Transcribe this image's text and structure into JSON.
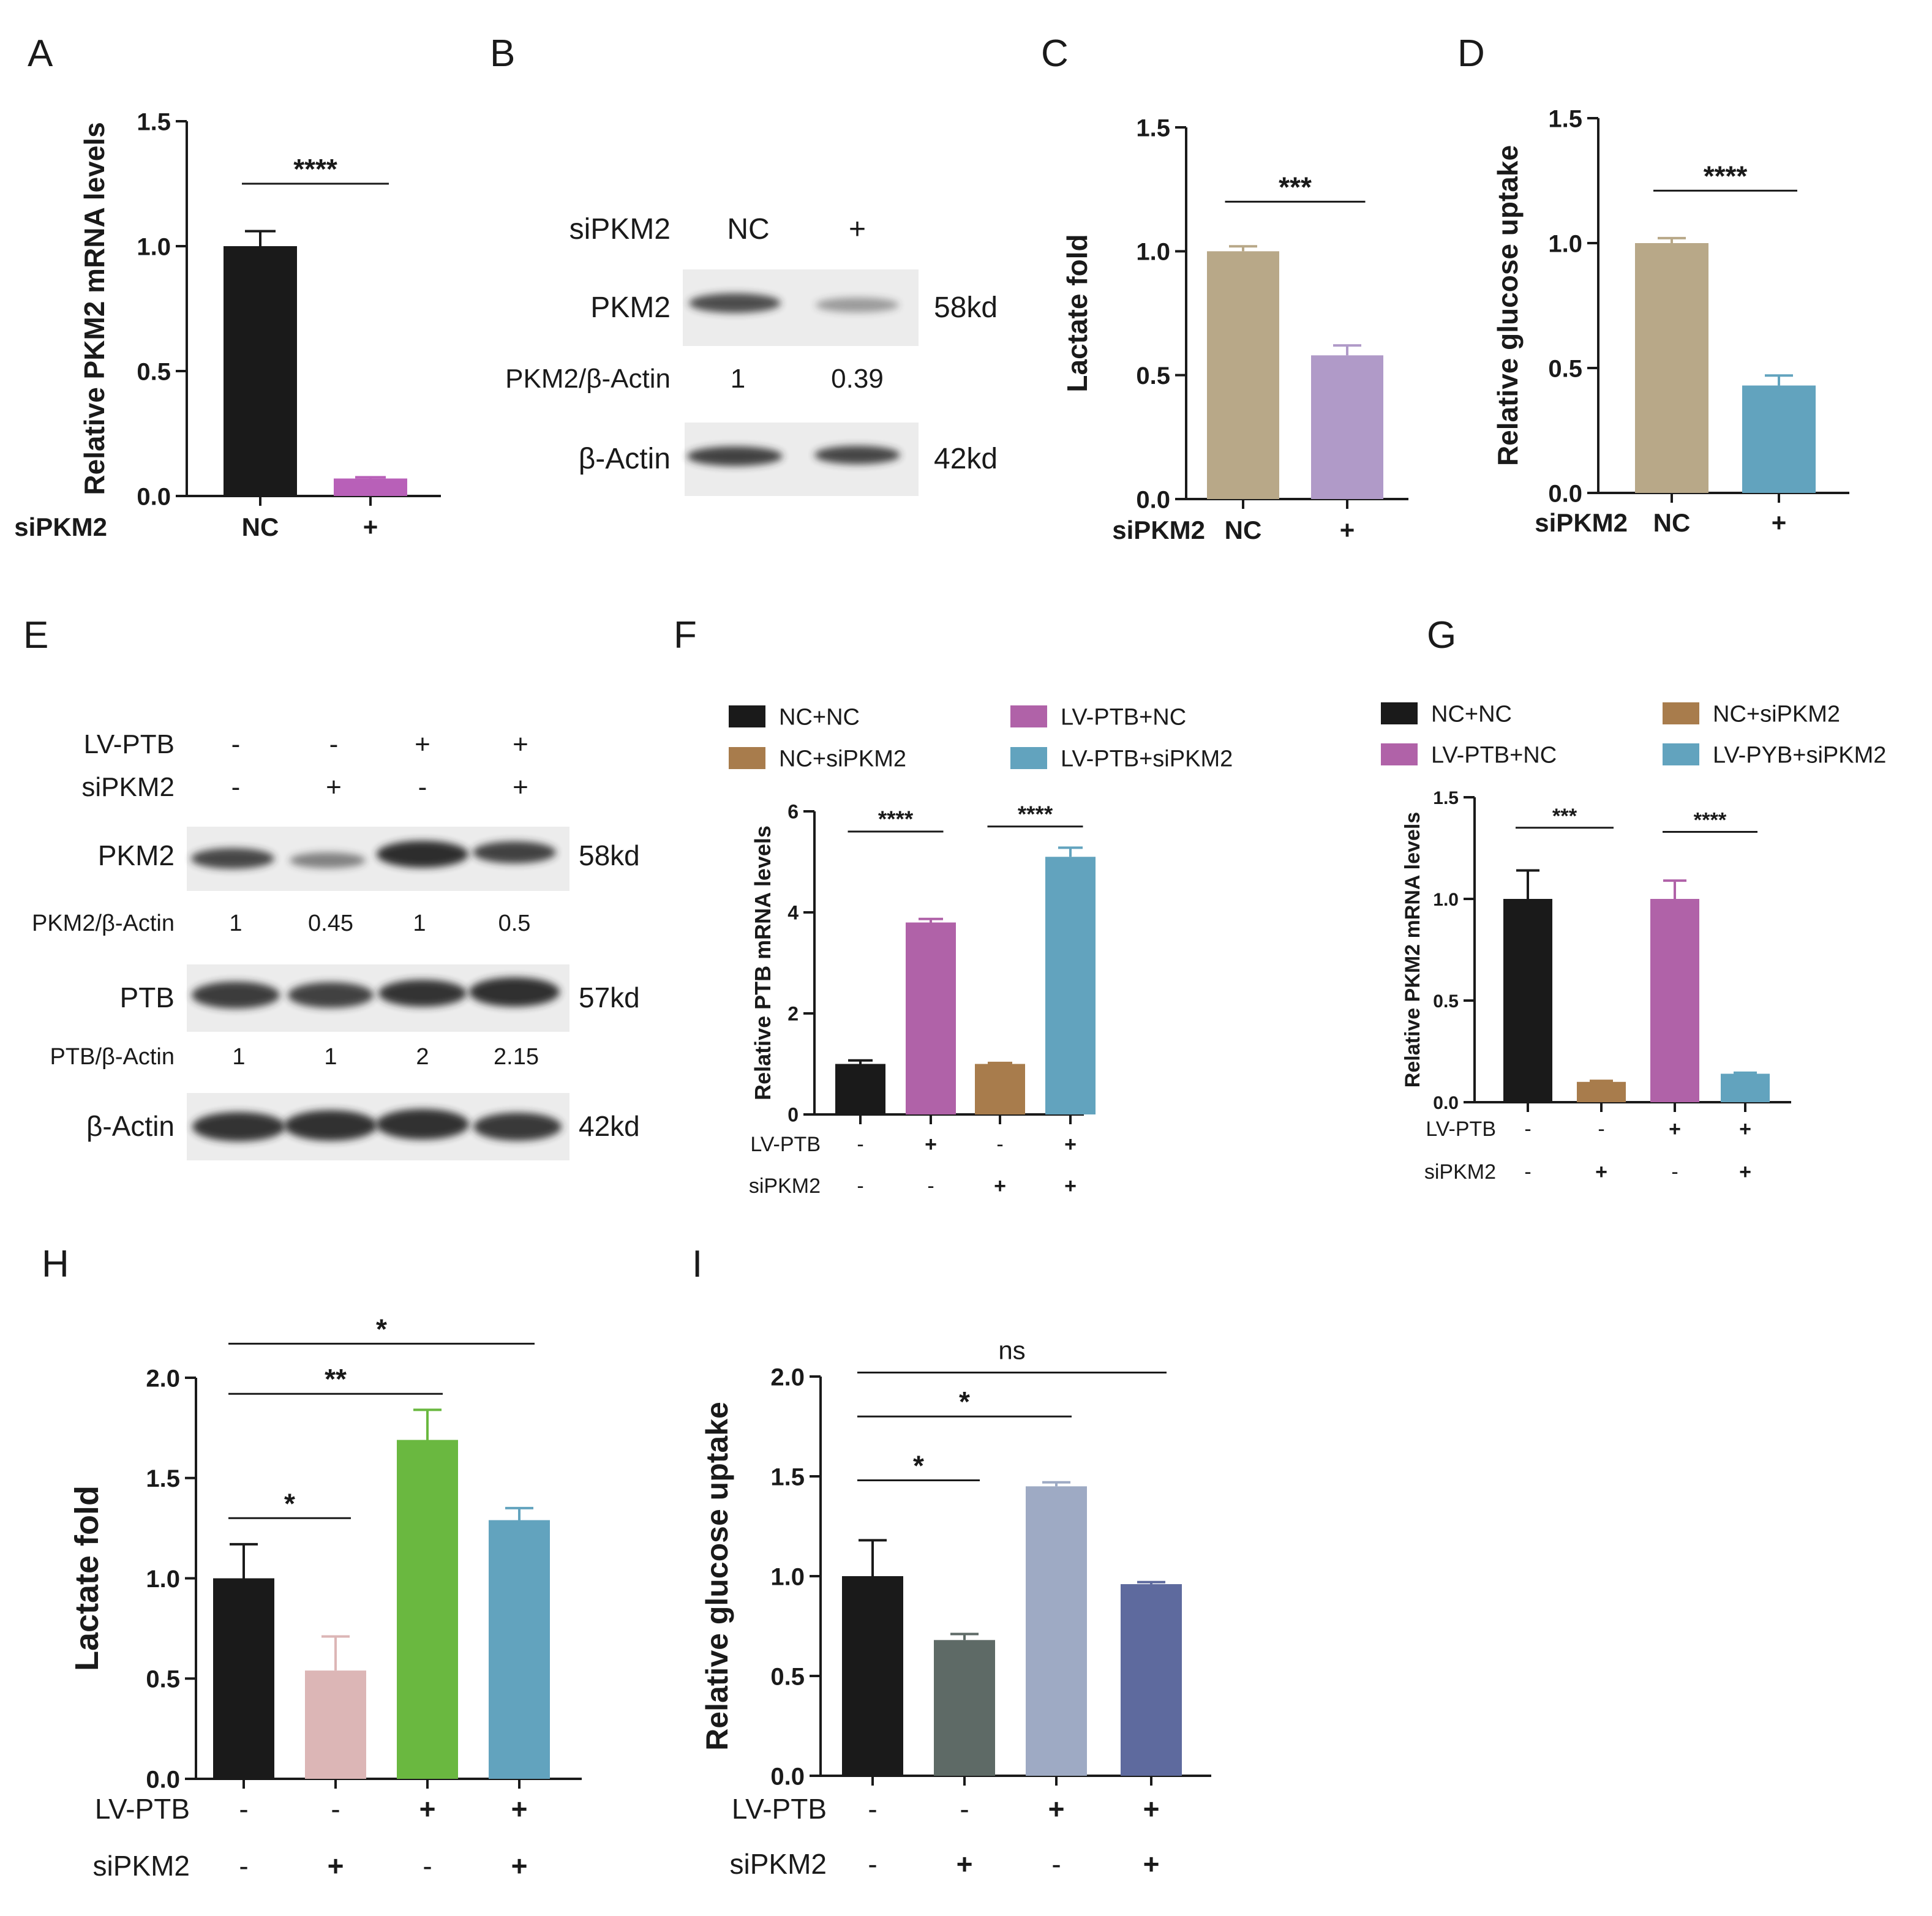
{
  "panel_labels": [
    "A",
    "B",
    "C",
    "D",
    "E",
    "F",
    "G",
    "H",
    "I"
  ],
  "blot_B": {
    "header_row": {
      "label": "siPKM2",
      "lanes": [
        "NC",
        "+"
      ]
    },
    "bands": [
      {
        "label": "PKM2",
        "size": "58kd",
        "intensity": [
          0.82,
          0.42
        ]
      },
      {
        "label": "β-Actin",
        "size": "42kd",
        "intensity": [
          0.88,
          0.86
        ]
      }
    ],
    "ratios": [
      {
        "label": "PKM2/β-Actin",
        "values": [
          "1",
          "0.39"
        ]
      }
    ]
  },
  "blot_E": {
    "conditions": [
      {
        "label": "LV-PTB",
        "values": [
          "-",
          "-",
          "+",
          "+"
        ]
      },
      {
        "label": "siPKM2",
        "values": [
          "-",
          "+",
          "-",
          "+"
        ]
      }
    ],
    "bands": [
      {
        "label": "PKM2",
        "size": "58kd",
        "intensity": [
          0.85,
          0.55,
          0.98,
          0.88
        ]
      },
      {
        "label": "PTB",
        "size": "57kd",
        "intensity": [
          0.9,
          0.88,
          0.95,
          0.97
        ]
      },
      {
        "label": "β-Actin",
        "size": "42kd",
        "intensity": [
          0.95,
          0.96,
          0.96,
          0.92
        ]
      }
    ],
    "ratios": [
      {
        "label": "PKM2/β-Actin",
        "values": [
          "1",
          "0.45",
          "1",
          "0.5"
        ]
      },
      {
        "label": "PTB/β-Actin",
        "values": [
          "1",
          "1",
          "2",
          "2.15"
        ]
      }
    ]
  },
  "chart_data": [
    {
      "panel": "A",
      "type": "bar",
      "ylabel": "Relative PKM2 mRNA levels",
      "ylim": [
        0,
        1.5
      ],
      "yticks": [
        "0.0",
        "0.5",
        "1.0",
        "1.5"
      ],
      "rows": [
        {
          "label": "siPKM2",
          "values": [
            "NC",
            "+"
          ]
        }
      ],
      "values": [
        1.0,
        0.07
      ],
      "errors": [
        0.06,
        0.005
      ],
      "colors": [
        "#1a1a1a",
        "#b860b8"
      ],
      "significance": [
        {
          "from": 0,
          "to": 1,
          "y": 1.25,
          "label": "****"
        }
      ]
    },
    {
      "panel": "C",
      "type": "bar",
      "ylabel": "Lactate fold",
      "ylim": [
        0,
        1.5
      ],
      "yticks": [
        "0.0",
        "0.5",
        "1.0",
        "1.5"
      ],
      "rows": [
        {
          "label": "siPKM2",
          "values": [
            "NC",
            "+"
          ]
        }
      ],
      "values": [
        1.0,
        0.58
      ],
      "errors": [
        0.02,
        0.04
      ],
      "colors": [
        "#b8a888",
        "#b09ac8"
      ],
      "significance": [
        {
          "from": 0,
          "to": 1,
          "y": 1.2,
          "label": "***"
        }
      ]
    },
    {
      "panel": "D",
      "type": "bar",
      "ylabel": "Relative glucose uptake",
      "ylim": [
        0,
        1.5
      ],
      "yticks": [
        "0.0",
        "0.5",
        "1.0",
        "1.5"
      ],
      "rows": [
        {
          "label": "siPKM2",
          "values": [
            "NC",
            "+"
          ]
        }
      ],
      "values": [
        1.0,
        0.43
      ],
      "errors": [
        0.02,
        0.04
      ],
      "colors": [
        "#b8a888",
        "#62a3be"
      ],
      "significance": [
        {
          "from": 0,
          "to": 1,
          "y": 1.21,
          "label": "****"
        }
      ]
    },
    {
      "panel": "F",
      "type": "bar",
      "ylabel": "Relative PTB mRNA levels",
      "ylim": [
        0,
        6
      ],
      "yticks": [
        "0",
        "2",
        "4",
        "6"
      ],
      "legend": [
        {
          "name": "NC+NC",
          "color": "#1a1a1a"
        },
        {
          "name": "LV-PTB+NC",
          "color": "#b062a8"
        },
        {
          "name": "NC+siPKM2",
          "color": "#a87c4c"
        },
        {
          "name": "LV-PTB+siPKM2",
          "color": "#62a3be"
        }
      ],
      "rows": [
        {
          "label": "LV-PTB",
          "values": [
            "-",
            "+",
            "-",
            "+"
          ]
        },
        {
          "label": "siPKM2",
          "values": [
            "-",
            "-",
            "+",
            "+"
          ]
        }
      ],
      "values": [
        1.0,
        3.8,
        1.0,
        5.1
      ],
      "errors": [
        0.07,
        0.07,
        0.02,
        0.18
      ],
      "colors": [
        "#1a1a1a",
        "#b062a8",
        "#a87c4c",
        "#62a3be"
      ],
      "significance": [
        {
          "from": 0,
          "to": 1,
          "y": 5.6,
          "label": "****"
        },
        {
          "from": 2,
          "to": 3,
          "y": 5.7,
          "label": "****"
        }
      ]
    },
    {
      "panel": "G",
      "type": "bar",
      "ylabel": "Relative PKM2 mRNA levels",
      "ylim": [
        0,
        1.5
      ],
      "yticks": [
        "0.0",
        "0.5",
        "1.0",
        "1.5"
      ],
      "legend": [
        {
          "name": "NC+NC",
          "color": "#1a1a1a"
        },
        {
          "name": "NC+siPKM2",
          "color": "#a87c4c"
        },
        {
          "name": "LV-PTB+NC",
          "color": "#b062a8"
        },
        {
          "name": "LV-PYB+siPKM2",
          "color": "#62a3be"
        }
      ],
      "rows": [
        {
          "label": "LV-PTB",
          "values": [
            "-",
            "-",
            "+",
            "+"
          ]
        },
        {
          "label": "siPKM2",
          "values": [
            "-",
            "+",
            "-",
            "+"
          ]
        }
      ],
      "values": [
        1.0,
        0.1,
        1.0,
        0.14
      ],
      "errors": [
        0.14,
        0.005,
        0.09,
        0.005
      ],
      "colors": [
        "#1a1a1a",
        "#a87c4c",
        "#b062a8",
        "#62a3be"
      ],
      "significance": [
        {
          "from": 0,
          "to": 1,
          "y": 1.35,
          "label": "***"
        },
        {
          "from": 2,
          "to": 3,
          "y": 1.33,
          "label": "****"
        }
      ]
    },
    {
      "panel": "H",
      "type": "bar",
      "ylabel": "Lactate fold",
      "ylim": [
        0,
        2.0
      ],
      "yticks": [
        "0.0",
        "0.5",
        "1.0",
        "1.5",
        "2.0"
      ],
      "rows": [
        {
          "label": "LV-PTB",
          "values": [
            "-",
            "-",
            "+",
            "+"
          ]
        },
        {
          "label": "siPKM2",
          "values": [
            "-",
            "+",
            "-",
            "+"
          ]
        }
      ],
      "values": [
        1.0,
        0.54,
        1.69,
        1.29
      ],
      "errors": [
        0.17,
        0.17,
        0.15,
        0.06
      ],
      "colors": [
        "#1a1a1a",
        "#dcb6b6",
        "#6ab840",
        "#62a3be"
      ],
      "significance": [
        {
          "from": 0,
          "to": 1,
          "y": 1.3,
          "label": "*"
        },
        {
          "from": 0,
          "to": 2,
          "y": 1.92,
          "label": "**"
        },
        {
          "from": 0,
          "to": 3,
          "y": 2.17,
          "label": "*"
        }
      ]
    },
    {
      "panel": "I",
      "type": "bar",
      "ylabel": "Relative glucose uptake",
      "ylim": [
        0,
        2.0
      ],
      "yticks": [
        "0.0",
        "0.5",
        "1.0",
        "1.5",
        "2.0"
      ],
      "rows": [
        {
          "label": "LV-PTB",
          "values": [
            "-",
            "-",
            "+",
            "+"
          ]
        },
        {
          "label": "siPKM2",
          "values": [
            "-",
            "+",
            "-",
            "+"
          ]
        }
      ],
      "values": [
        1.0,
        0.68,
        1.45,
        0.96
      ],
      "errors": [
        0.18,
        0.03,
        0.02,
        0.01
      ],
      "colors": [
        "#1a1a1a",
        "#5e6a66",
        "#9eaac4",
        "#5e6a9e"
      ],
      "significance": [
        {
          "from": 0,
          "to": 1,
          "y": 1.48,
          "label": "*"
        },
        {
          "from": 0,
          "to": 2,
          "y": 1.8,
          "label": "*"
        },
        {
          "from": 0,
          "to": 3,
          "y": 2.02,
          "label": "ns"
        }
      ]
    }
  ]
}
